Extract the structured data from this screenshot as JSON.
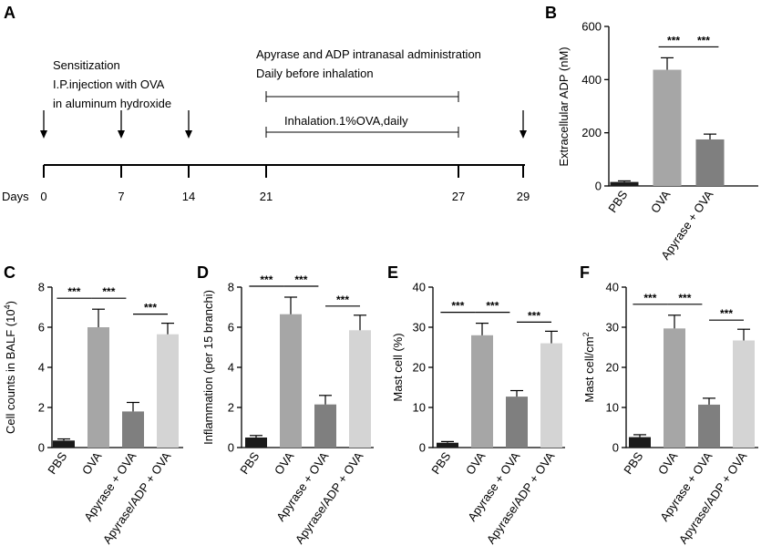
{
  "panel_labels": [
    "A",
    "B",
    "C",
    "D",
    "E",
    "F"
  ],
  "timeline": {
    "days_label": "Days",
    "days": [
      "0",
      "7",
      "14",
      "21",
      "27",
      "29"
    ],
    "sensitization": [
      "Sensitization",
      "I.P.injection with OVA",
      "in aluminum hydroxide"
    ],
    "apyrase_text": [
      "Apyrase and ADP intranasal administration",
      "Daily before inhalation"
    ],
    "inhalation_text": "Inhalation.1%OVA,daily"
  },
  "colors": {
    "PBS": "#1a1a1a",
    "OVA": "#a6a6a6",
    "Apyrase + OVA": "#7f7f7f",
    "Apyrase/ADP + OVA": "#d4d4d4"
  },
  "significance_label": "***",
  "chart_data": [
    {
      "panel": "B",
      "type": "bar",
      "categories": [
        "PBS",
        "OVA",
        "Apyrase + OVA"
      ],
      "values": [
        15,
        437,
        175
      ],
      "errors": [
        4,
        45,
        20
      ],
      "ylabel": "Extracellular ADP (nM)",
      "ylim": [
        0,
        600
      ],
      "yticks": [
        0,
        200,
        400,
        600
      ],
      "significance": [
        {
          "from": 0.8,
          "to": 1.5,
          "label": "***"
        },
        {
          "from": 1.5,
          "to": 2.2,
          "label": "***"
        }
      ]
    },
    {
      "panel": "C",
      "type": "bar",
      "categories": [
        "PBS",
        "OVA",
        "Apyrase + OVA",
        "Apyrase/ADP + OVA"
      ],
      "values": [
        0.35,
        6.0,
        1.8,
        5.65
      ],
      "errors": [
        0.08,
        0.9,
        0.45,
        0.55
      ],
      "ylabel": "Cell counts in BALF (10^4)",
      "ylabel_base": "Cell counts in BALF (10",
      "ylabel_sup": "4",
      "ylabel_end": ")",
      "ylim": [
        0,
        8
      ],
      "yticks": [
        0,
        2,
        4,
        6,
        8
      ],
      "significance": [
        {
          "from": -0.2,
          "to": 0.8,
          "label": "***"
        },
        {
          "from": 0.8,
          "to": 1.8,
          "label": "***"
        },
        {
          "from": 2.0,
          "to": 3.0,
          "label": "***"
        }
      ]
    },
    {
      "panel": "D",
      "type": "bar",
      "categories": [
        "PBS",
        "OVA",
        "Apyrase + OVA",
        "Apyrase/ADP + OVA"
      ],
      "values": [
        0.5,
        6.65,
        2.15,
        5.85
      ],
      "errors": [
        0.1,
        0.85,
        0.45,
        0.75
      ],
      "ylabel": "Inflammation (per 15 branchi)",
      "ylim": [
        0,
        8
      ],
      "yticks": [
        0,
        2,
        4,
        6,
        8
      ],
      "significance": [
        {
          "from": -0.2,
          "to": 0.8,
          "label": "***"
        },
        {
          "from": 0.8,
          "to": 1.8,
          "label": "***"
        },
        {
          "from": 2.0,
          "to": 3.0,
          "label": "***"
        }
      ]
    },
    {
      "panel": "E",
      "type": "bar",
      "categories": [
        "PBS",
        "OVA",
        "Apyrase + OVA",
        "Apyrase/ADP + OVA"
      ],
      "values": [
        1.2,
        28.0,
        12.7,
        26.0
      ],
      "errors": [
        0.3,
        3.0,
        1.5,
        3.0
      ],
      "ylabel": "Mast cell (%)",
      "ylim": [
        0,
        40
      ],
      "yticks": [
        0,
        10,
        20,
        30,
        40
      ],
      "significance": [
        {
          "from": -0.2,
          "to": 0.8,
          "label": "***"
        },
        {
          "from": 0.8,
          "to": 1.8,
          "label": "***"
        },
        {
          "from": 2.0,
          "to": 3.0,
          "label": "***"
        }
      ]
    },
    {
      "panel": "F",
      "type": "bar",
      "categories": [
        "PBS",
        "OVA",
        "Apyrase + OVA",
        "Apyrase/ADP + OVA"
      ],
      "values": [
        2.6,
        29.7,
        10.7,
        26.7
      ],
      "errors": [
        0.6,
        3.3,
        1.6,
        2.8
      ],
      "ylabel": "Mast cell/cm^2",
      "ylabel_base": "Mast cell/cm",
      "ylabel_sup": "2",
      "ylabel_end": "",
      "ylim": [
        0,
        40
      ],
      "yticks": [
        0,
        10,
        20,
        30,
        40
      ],
      "significance": [
        {
          "from": -0.2,
          "to": 0.8,
          "label": "***"
        },
        {
          "from": 0.8,
          "to": 1.8,
          "label": "***"
        },
        {
          "from": 2.0,
          "to": 3.0,
          "label": "***"
        }
      ]
    }
  ]
}
